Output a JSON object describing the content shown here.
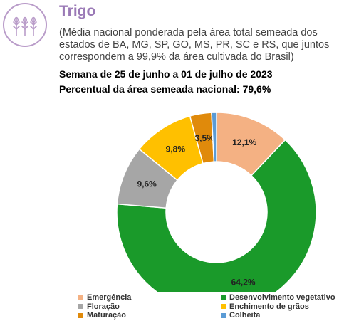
{
  "header": {
    "title": "Trigo",
    "subtitle": "(Média nacional ponderada pela área total semeada dos estados de BA, MG, SP, GO, MS, PR, SC e RS, que juntos correspondem a 99,9% da área cultivada do Brasil)",
    "week": "Semana de 25 de junho a 01 de julho de 2023",
    "percent_line": "Percentual da área semeada nacional: 79,6%",
    "logo_icon": "wheat-icon"
  },
  "chart_data": {
    "type": "pie",
    "donut": true,
    "title": "",
    "legend_position": "bottom",
    "categories": [
      "Emergência",
      "Desenvolvimento vegetativo",
      "Floração",
      "Enchimento de grãos",
      "Maturação",
      "Colheita"
    ],
    "values": [
      12.1,
      64.2,
      9.6,
      9.8,
      3.5,
      0.8
    ],
    "labels": [
      "12,1%",
      "64,2%",
      "9,6%",
      "9,8%",
      "3,5%",
      ""
    ],
    "colors": [
      "#f4b183",
      "#1a9a2a",
      "#a6a6a6",
      "#ffc000",
      "#e08a0b",
      "#5b9bd5"
    ]
  }
}
